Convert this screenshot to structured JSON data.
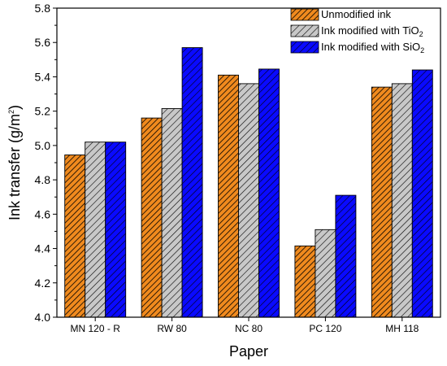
{
  "chart_data": {
    "type": "bar",
    "xlabel": "Paper",
    "ylabel_text": "Ink transfer (g/m",
    "ylabel_sup": "2",
    "ylabel_close": ")",
    "ylim": [
      4.0,
      5.8
    ],
    "yticks": [
      "4.0",
      "4.2",
      "4.4",
      "4.6",
      "4.8",
      "5.0",
      "5.2",
      "5.4",
      "5.6",
      "5.8"
    ],
    "categories": [
      "MN 120 - R",
      "RW 80",
      "NC 80",
      "PC 120",
      "MH 118"
    ],
    "legend_position": "top-right",
    "series": [
      {
        "name": "Unmodified ink",
        "legend_main": "Unmodified ink",
        "legend_sub": "",
        "color": "#f08a1e",
        "pattern": "dense-hatch",
        "values": [
          4.945,
          5.16,
          5.41,
          4.415,
          5.34
        ]
      },
      {
        "name": "Ink modified with TiO2",
        "legend_main": "Ink modified with TiO",
        "legend_sub": "2",
        "color": "#c8c8c8",
        "pattern": "hatch",
        "values": [
          5.02,
          5.215,
          5.36,
          4.51,
          5.36
        ]
      },
      {
        "name": "Ink modified with SiO2",
        "legend_main": "Ink modified with SiO",
        "legend_sub": "2",
        "color": "#0a0aff",
        "pattern": "hatch",
        "values": [
          5.02,
          5.57,
          5.445,
          4.71,
          5.44
        ]
      }
    ]
  }
}
